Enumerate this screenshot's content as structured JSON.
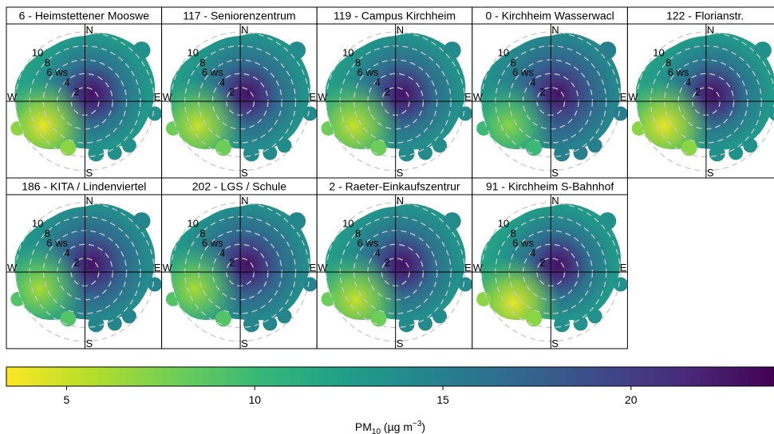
{
  "chart_data": {
    "type": "heatmap",
    "plot_kind": "polar-plot",
    "panel_order": "left-to-right, top-to-bottom",
    "direction_labels": {
      "north": "N",
      "east": "E",
      "south": "S",
      "west": "W"
    },
    "radial_axis": {
      "label": "ws",
      "ticks": [
        2,
        4,
        6,
        8,
        10
      ],
      "max": 11
    },
    "colorbar": {
      "label": "PM",
      "label_sub": "10",
      "label_unit": " (µg m",
      "label_sup": "−3",
      "label_close": ")",
      "ticks": [
        5,
        10,
        15,
        20
      ],
      "range": [
        3.4,
        23.8
      ],
      "colors": [
        "#fde725",
        "#b5de2b",
        "#6ece58",
        "#35b779",
        "#1f9e89",
        "#26828e",
        "#31688e",
        "#3e4989",
        "#482878",
        "#440154"
      ]
    },
    "hotspot": {
      "direction_deg": 45,
      "ws": 1.5,
      "value_max": 23
    },
    "panels": [
      {
        "name": "6 - Heimstettener Mooswe",
        "low_direction_deg": 240,
        "low_ws": 7,
        "value_min": 4
      },
      {
        "name": "117 - Seniorenzentrum",
        "low_direction_deg": 240,
        "low_ws": 7,
        "value_min": 5
      },
      {
        "name": "119 - Campus Kirchheim",
        "low_direction_deg": 240,
        "low_ws": 7,
        "value_min": 5
      },
      {
        "name": "0 - Kirchheim Wasserwacl",
        "low_direction_deg": 240,
        "low_ws": 7,
        "value_min": 7
      },
      {
        "name": "122 - Florianstr.",
        "low_direction_deg": 240,
        "low_ws": 7,
        "value_min": 4
      },
      {
        "name": "186 - KITA / Lindenviertel",
        "low_direction_deg": 250,
        "low_ws": 7,
        "value_min": 6
      },
      {
        "name": "202 - LGS / Schule",
        "low_direction_deg": 250,
        "low_ws": 7,
        "value_min": 6
      },
      {
        "name": "2 - Raeter-Einkaufszentrur",
        "low_direction_deg": 235,
        "low_ws": 7,
        "value_min": 5
      },
      {
        "name": "91 - Kirchheim S-Bahnhof",
        "low_direction_deg": 230,
        "low_ws": 7,
        "value_min": 4
      }
    ]
  }
}
